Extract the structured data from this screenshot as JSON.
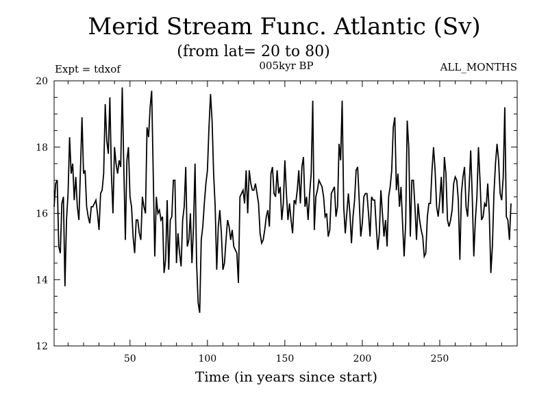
{
  "title": "Merid Stream Func. Atlantic (Sv)",
  "subtitle": "(from lat= 20 to 80)",
  "expt_label": "Expt = tdxof",
  "period_label": "005kyr BP",
  "months_label": "ALL_MONTHS",
  "xlabel": "Time (in years since start)",
  "line_color": "#000000",
  "chart_data": {
    "type": "line",
    "title": "Merid Stream Func. Atlantic (Sv)",
    "subtitle": "(from lat= 20 to 80)",
    "xlabel": "Time (in years since start)",
    "ylabel": "",
    "xlim": [
      1,
      300
    ],
    "ylim": [
      12,
      20
    ],
    "x_ticks": [
      50,
      100,
      150,
      200,
      250
    ],
    "y_ticks": [
      12,
      14,
      16,
      18,
      20
    ],
    "x_start": 1,
    "x_step": 1,
    "series": [
      {
        "values": [
          16.2,
          16.9,
          17.0,
          15.0,
          14.8,
          16.3,
          16.5,
          13.8,
          15.8,
          16.6,
          18.3,
          17.2,
          17.5,
          16.4,
          17.1,
          16.2,
          15.8,
          17.3,
          18.9,
          17.2,
          17.3,
          16.2,
          15.9,
          15.7,
          16.2,
          16.2,
          16.3,
          16.4,
          16.0,
          15.5,
          16.6,
          16.7,
          17.2,
          19.3,
          18.2,
          17.8,
          19.5,
          17.2,
          16.0,
          18.0,
          17.5,
          17.2,
          17.6,
          17.4,
          19.8,
          17.4,
          15.2,
          17.6,
          18.0,
          16.5,
          16.2,
          15.3,
          14.8,
          15.8,
          15.8,
          15.4,
          15.2,
          16.5,
          16.2,
          16.0,
          18.6,
          18.3,
          19.2,
          19.7,
          17.2,
          14.7,
          16.5,
          16.0,
          16.1,
          15.8,
          15.9,
          14.2,
          14.6,
          16.4,
          14.3,
          15.8,
          15.9,
          17.0,
          17.0,
          14.5,
          15.4,
          14.8,
          14.4,
          15.8,
          16.2,
          17.4,
          15.0,
          15.2,
          16.0,
          14.5,
          15.6,
          17.5,
          14.5,
          13.3,
          13.0,
          15.2,
          15.6,
          16.3,
          16.9,
          17.3,
          18.6,
          19.6,
          18.8,
          17.2,
          16.2,
          14.3,
          15.6,
          16.1,
          15.4,
          14.3,
          14.5,
          15.2,
          15.8,
          15.6,
          15.2,
          15.5,
          15.0,
          14.9,
          14.8,
          13.9,
          16.5,
          16.6,
          16.7,
          16.3,
          17.3,
          16.0,
          17.3,
          16.9,
          16.7,
          16.7,
          16.9,
          16.6,
          16.3,
          15.4,
          15.1,
          15.2,
          15.5,
          15.9,
          16.1,
          15.6,
          17.2,
          17.4,
          16.6,
          16.5,
          17.3,
          16.6,
          16.8,
          15.8,
          16.3,
          17.6,
          16.6,
          15.8,
          16.3,
          15.8,
          15.4,
          16.4,
          16.3,
          16.7,
          17.3,
          16.3,
          17.4,
          17.7,
          16.2,
          16.5,
          15.8,
          16.6,
          17.2,
          19.4,
          15.5,
          16.5,
          16.7,
          17.0,
          16.9,
          16.8,
          16.5,
          15.9,
          16.0,
          15.3,
          15.5,
          16.6,
          16.7,
          16.8,
          15.9,
          16.2,
          18.1,
          17.6,
          19.4,
          16.2,
          15.4,
          16.0,
          16.6,
          16.0,
          15.1,
          15.9,
          16.4,
          17.3,
          17.4,
          16.4,
          15.3,
          15.7,
          16.5,
          16.6,
          16.6,
          16.0,
          15.3,
          16.5,
          16.4,
          16.4,
          15.6,
          14.9,
          15.4,
          16.7,
          16.0,
          15.3,
          15.8,
          15.0,
          16.5,
          16.8,
          17.3,
          18.6,
          18.9,
          16.7,
          17.2,
          16.2,
          16.8,
          15.7,
          14.7,
          15.7,
          18.8,
          18.0,
          15.3,
          17.0,
          17.0,
          16.2,
          15.2,
          16.3,
          15.8,
          15.5,
          15.3,
          14.7,
          14.8,
          15.9,
          16.3,
          16.3,
          17.3,
          18.0,
          17.3,
          16.2,
          15.9,
          16.4,
          17.1,
          16.0,
          17.7,
          17.2,
          15.8,
          15.6,
          15.8,
          16.1,
          16.9,
          17.1,
          17.0,
          16.4,
          14.6,
          16.6,
          17.1,
          17.4,
          16.2,
          15.9,
          16.8,
          17.9,
          16.5,
          14.7,
          15.8,
          16.5,
          18.0,
          17.0,
          15.8,
          15.9,
          16.3,
          16.2,
          16.9,
          16.0,
          14.2,
          15.0,
          16.6,
          17.5,
          18.1,
          17.6,
          16.6,
          16.4,
          17.1,
          19.2,
          15.9,
          15.8,
          15.2,
          16.3
        ]
      }
    ],
    "grid": false,
    "legend": "none"
  }
}
